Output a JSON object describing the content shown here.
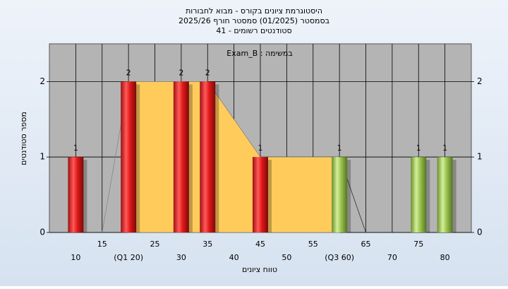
{
  "chart_data": {
    "type": "bar",
    "title": "היסטוגרמת ציונים בקורס - מבוא לחבורות",
    "subtitle": "בסמסטר  (01/2025)  סמסטר חורף 2025/26",
    "subtitle2": "סטודנטים רשומים - 41",
    "annotation": "Exam_B : במשימה",
    "x_label": "טווח ציונים",
    "y_label": "מספר סטודנטים",
    "categories": [
      "10",
      "15",
      "(Q1 20)",
      "25",
      "30",
      "35",
      "40",
      "45",
      "50",
      "55",
      "(Q3 60)",
      "65",
      "70",
      "75",
      "80"
    ],
    "values": [
      1,
      0,
      2,
      0,
      2,
      2,
      0,
      1,
      0,
      0,
      1,
      0,
      0,
      1,
      1
    ],
    "colors": [
      "red",
      "red",
      "red",
      "red",
      "red",
      "red",
      "red",
      "red",
      "red",
      "red",
      "green",
      "green",
      "green",
      "green",
      "green"
    ],
    "ylim": [
      0,
      2.5
    ],
    "yticks": [
      0,
      1,
      2
    ],
    "grid": true
  }
}
